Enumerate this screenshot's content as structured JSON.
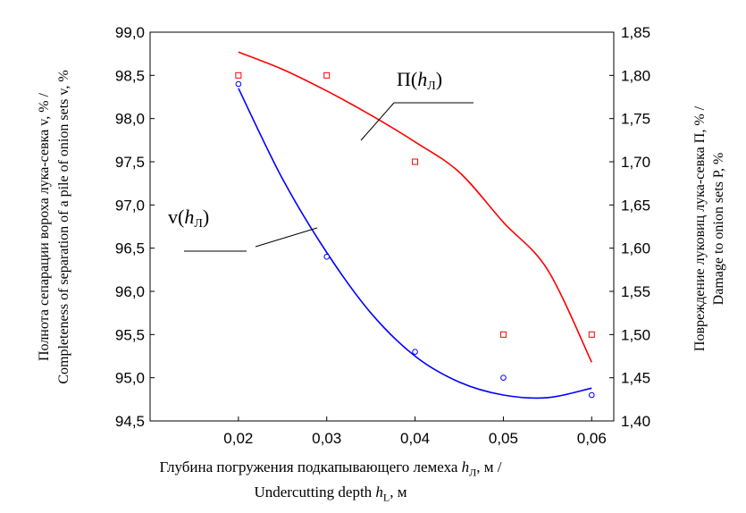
{
  "chart_data": {
    "type": "scatter",
    "x": [
      0.02,
      0.03,
      0.04,
      0.05,
      0.06
    ],
    "x_tick_labels": [
      "0,02",
      "0,03",
      "0,04",
      "0,05",
      "0,06"
    ],
    "xlim": [
      0.01,
      0.0625
    ],
    "ylim_left": [
      94.5,
      99.0
    ],
    "ylim_right": [
      1.4,
      1.85
    ],
    "left_tick_labels": [
      "99,0",
      "98,5",
      "98,0",
      "97,5",
      "97,0",
      "96,5",
      "96,0",
      "95,5",
      "95,0",
      "94,5"
    ],
    "left_tick_values": [
      99.0,
      98.5,
      98.0,
      97.5,
      97.0,
      96.5,
      96.0,
      95.5,
      95.0,
      94.5
    ],
    "right_tick_labels": [
      "1,85",
      "1,80",
      "1,75",
      "1,70",
      "1,65",
      "1,60",
      "1,55",
      "1,50",
      "1,45",
      "1,40"
    ],
    "right_tick_values": [
      1.85,
      1.8,
      1.75,
      1.7,
      1.65,
      1.6,
      1.55,
      1.5,
      1.45,
      1.4
    ],
    "series": [
      {
        "name": "Completeness of separation v",
        "axis": "left",
        "color": "#0000ff",
        "marker": "circle",
        "points_x": [
          0.02,
          0.03,
          0.04,
          0.05,
          0.06
        ],
        "points_y": [
          98.4,
          96.4,
          95.3,
          95.0,
          94.8
        ],
        "fit_x": [
          0.02,
          0.025,
          0.03,
          0.035,
          0.04,
          0.045,
          0.05,
          0.055,
          0.06
        ],
        "fit_y": [
          98.35,
          97.3,
          96.45,
          95.75,
          95.25,
          94.95,
          94.8,
          94.77,
          94.88
        ]
      },
      {
        "name": "Damage to onion sets P",
        "axis": "right",
        "color": "#ff0000",
        "marker": "square",
        "points_x": [
          0.02,
          0.03,
          0.04,
          0.05,
          0.06
        ],
        "points_y": [
          1.8,
          1.8,
          1.7,
          1.5,
          1.5
        ],
        "fit_x": [
          0.02,
          0.025,
          0.03,
          0.035,
          0.04,
          0.045,
          0.05,
          0.055,
          0.06
        ],
        "fit_y": [
          1.827,
          1.807,
          1.782,
          1.754,
          1.723,
          1.688,
          1.63,
          1.575,
          1.468
        ]
      }
    ],
    "annotations": {
      "pi_label_main": "П(",
      "pi_label_var": "h",
      "pi_label_sub": "Л",
      "pi_label_close": ")",
      "nu_label_main": "v(",
      "nu_label_var": "h",
      "nu_label_sub": "Л",
      "nu_label_close": ")"
    },
    "ylabel_left_line1": "Полнота сепарации вороха лука-севка v, % /",
    "ylabel_left_line2": "Completeness of separation of a pile of onion sets v, %",
    "ylabel_right_line1": "Повреждение луковиц лука-севка П, % /",
    "ylabel_right_line2": "Damage to onion sets P, %",
    "xlabel_line1_a": "Глубина погружения подкапывающего лемеха ",
    "xlabel_line1_var": "h",
    "xlabel_line1_sub": "Л",
    "xlabel_line1_b": ", м /",
    "xlabel_line2_a": "Undercutting depth ",
    "xlabel_line2_var": "h",
    "xlabel_line2_sub": "L",
    "xlabel_line2_b": ", м"
  }
}
